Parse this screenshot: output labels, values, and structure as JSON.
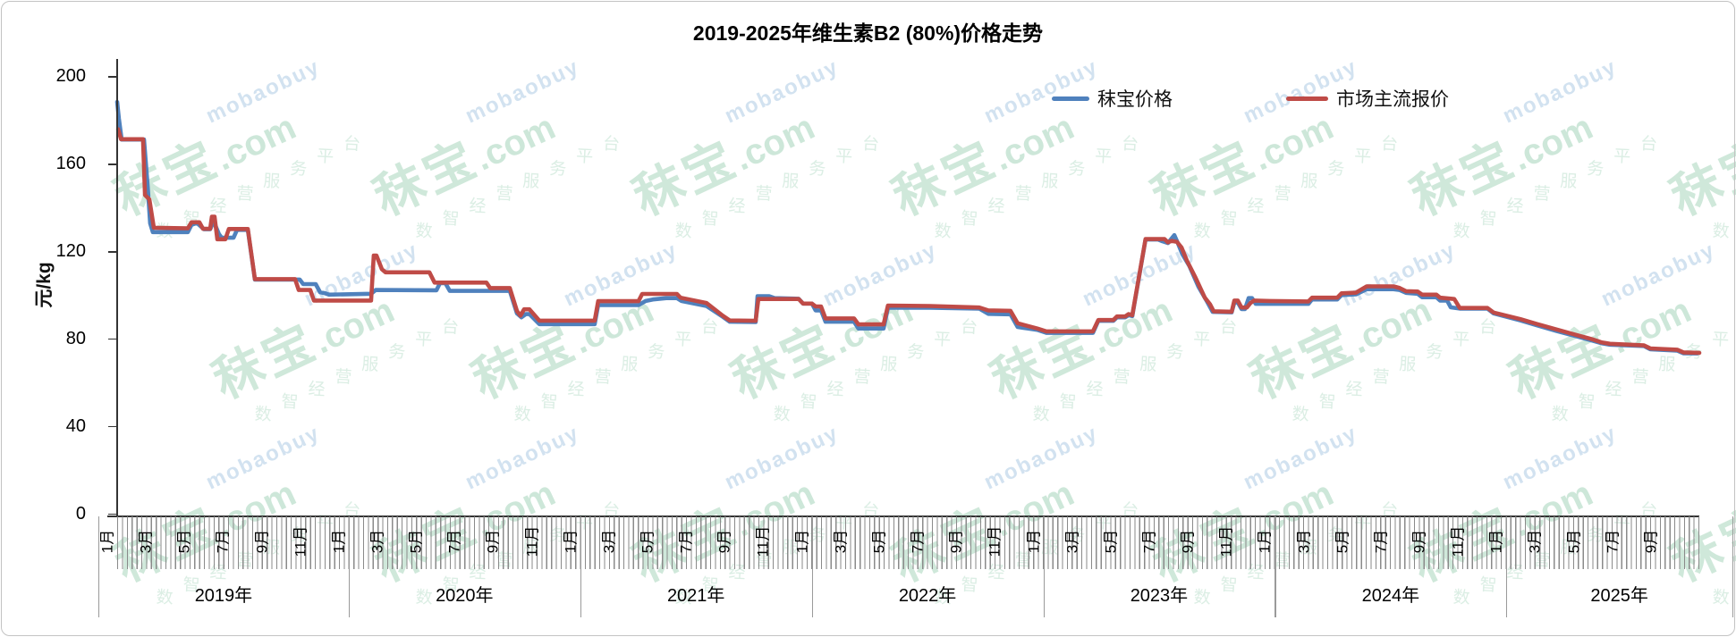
{
  "title": "2019-2025年维生素B2 (80%)价格走势",
  "y_axis": {
    "label": "元/kg",
    "ticks": [
      0,
      40,
      80,
      120,
      160,
      200
    ],
    "min": 0,
    "max": 200
  },
  "x_axis": {
    "month_labels": [
      "1月",
      "3月",
      "5月",
      "7月",
      "9月",
      "11月"
    ],
    "year_labels": [
      "2019年",
      "2020年",
      "2021年",
      "2022年",
      "2023年",
      "2024年",
      "2025年"
    ],
    "range_months": 82
  },
  "legend": [
    {
      "label": "秣宝价格",
      "color": "#4f81bd"
    },
    {
      "label": "市场主流报价",
      "color": "#bf4b47"
    }
  ],
  "watermark": {
    "brand_cn": "秣宝",
    "domain": ".com",
    "brand_en": "mobaobuy",
    "tagline": "数智经营服务平台"
  },
  "chart_data": {
    "type": "line",
    "title": "2019-2025年维生素B2 (80%)价格走势",
    "xlabel": "",
    "ylabel": "元/kg",
    "ylim": [
      0,
      200
    ],
    "x_unit": "months since 2019-01 (0 = Jan 2019, 82 = end Oct 2025)",
    "legend_position": "top",
    "grid": false,
    "series": [
      {
        "name": "秣宝价格",
        "color": "#4f81bd",
        "points": [
          [
            0,
            188.5
          ],
          [
            0.09,
            181
          ],
          [
            0.23,
            171.3
          ],
          [
            1.39,
            171.3
          ],
          [
            1.58,
            150
          ],
          [
            1.71,
            133
          ],
          [
            1.85,
            129
          ],
          [
            3.66,
            129
          ],
          [
            3.85,
            132.3
          ],
          [
            4.13,
            133.2
          ],
          [
            4.5,
            130.3
          ],
          [
            4.82,
            130.3
          ],
          [
            5.0,
            133.9
          ],
          [
            5.28,
            128
          ],
          [
            5.42,
            126.4
          ],
          [
            6.03,
            126.4
          ],
          [
            6.21,
            130
          ],
          [
            6.77,
            130
          ],
          [
            7.14,
            107.3
          ],
          [
            9.46,
            107.3
          ],
          [
            9.64,
            105.2
          ],
          [
            10.29,
            105.2
          ],
          [
            10.52,
            101.5
          ],
          [
            10.75,
            101.1
          ],
          [
            10.98,
            100.4
          ],
          [
            13.16,
            100.8
          ],
          [
            13.4,
            102.5
          ],
          [
            16.55,
            102.4
          ],
          [
            16.73,
            105.6
          ],
          [
            17.01,
            105.6
          ],
          [
            17.24,
            102.1
          ],
          [
            20.35,
            102.1
          ],
          [
            20.72,
            91.8
          ],
          [
            20.95,
            90
          ],
          [
            21.18,
            91.5
          ],
          [
            21.37,
            91.5
          ],
          [
            21.88,
            86.9
          ],
          [
            24.75,
            86.9
          ],
          [
            24.93,
            95.6
          ],
          [
            27.02,
            95.6
          ],
          [
            27.39,
            97.5
          ],
          [
            27.76,
            98.2
          ],
          [
            28.46,
            98.8
          ],
          [
            29.01,
            98.8
          ],
          [
            29.25,
            97.5
          ],
          [
            30.54,
            95.2
          ],
          [
            31.38,
            90.3
          ],
          [
            31.75,
            88
          ],
          [
            33.09,
            87.9
          ],
          [
            33.19,
            99.7
          ],
          [
            33.79,
            99.7
          ],
          [
            34.07,
            98.8
          ],
          [
            35.32,
            98.5
          ],
          [
            35.55,
            96.3
          ],
          [
            36.01,
            96.3
          ],
          [
            36.2,
            93.2
          ],
          [
            36.48,
            93.2
          ],
          [
            36.71,
            88
          ],
          [
            38.19,
            88
          ],
          [
            38.42,
            84.9
          ],
          [
            39.72,
            84.9
          ],
          [
            39.95,
            94.4
          ],
          [
            42.13,
            94.4
          ],
          [
            44.68,
            94
          ],
          [
            45.15,
            91.6
          ],
          [
            46.3,
            91.4
          ],
          [
            46.67,
            85.6
          ],
          [
            47.22,
            84.9
          ],
          [
            47.69,
            84.3
          ],
          [
            48.16,
            82.9
          ],
          [
            50.57,
            82.9
          ],
          [
            50.85,
            88.4
          ],
          [
            51.63,
            88.4
          ],
          [
            51.82,
            90
          ],
          [
            52.24,
            90
          ],
          [
            52.42,
            91
          ],
          [
            52.61,
            90.6
          ],
          [
            53.3,
            125.6
          ],
          [
            53.95,
            125.6
          ],
          [
            54.18,
            124.8
          ],
          [
            54.46,
            124
          ],
          [
            54.79,
            127.6
          ],
          [
            54.97,
            124
          ],
          [
            55.2,
            119
          ],
          [
            55.57,
            113.5
          ],
          [
            56.04,
            104
          ],
          [
            56.5,
            97
          ],
          [
            56.78,
            92.5
          ],
          [
            57.76,
            92.3
          ],
          [
            57.9,
            96.8
          ],
          [
            58.08,
            96.8
          ],
          [
            58.27,
            93.8
          ],
          [
            58.45,
            93.8
          ],
          [
            58.64,
            98.8
          ],
          [
            58.82,
            98.8
          ],
          [
            59.01,
            96.2
          ],
          [
            61.74,
            96.2
          ],
          [
            61.93,
            98.2
          ],
          [
            63.23,
            98.2
          ],
          [
            63.46,
            100.2
          ],
          [
            64.2,
            100.5
          ],
          [
            64.76,
            102.9
          ],
          [
            66.15,
            102.9
          ],
          [
            66.47,
            102.5
          ],
          [
            66.8,
            101.2
          ],
          [
            67.4,
            100.8
          ],
          [
            67.63,
            99.2
          ],
          [
            68.37,
            99.2
          ],
          [
            68.56,
            97.7
          ],
          [
            68.93,
            97.7
          ],
          [
            69.12,
            94.6
          ],
          [
            69.58,
            94
          ],
          [
            71.02,
            94
          ],
          [
            71.34,
            91.8
          ],
          [
            72.73,
            88.6
          ],
          [
            73.57,
            86.4
          ],
          [
            74.59,
            83.8
          ],
          [
            75.61,
            81.4
          ],
          [
            76.44,
            79.4
          ],
          [
            76.91,
            78.2
          ],
          [
            77.37,
            77.5
          ],
          [
            79.13,
            76.9
          ],
          [
            79.46,
            75.4
          ],
          [
            80.85,
            74.8
          ],
          [
            81.17,
            73.6
          ],
          [
            81.9,
            73.5
          ]
        ]
      },
      {
        "name": "市场主流报价",
        "color": "#bf4b47",
        "points": [
          [
            0.05,
            176
          ],
          [
            0.2,
            171.5
          ],
          [
            1.34,
            171.5
          ],
          [
            1.44,
            146
          ],
          [
            1.67,
            144
          ],
          [
            1.9,
            131
          ],
          [
            3.66,
            130.7
          ],
          [
            3.85,
            133.5
          ],
          [
            4.26,
            133.5
          ],
          [
            4.45,
            130.5
          ],
          [
            4.82,
            130.5
          ],
          [
            4.91,
            136
          ],
          [
            5.05,
            136
          ],
          [
            5.19,
            125.7
          ],
          [
            5.61,
            125.7
          ],
          [
            5.79,
            130.4
          ],
          [
            6.77,
            130.4
          ],
          [
            7.14,
            107.5
          ],
          [
            9.22,
            107.5
          ],
          [
            9.41,
            102.5
          ],
          [
            10.01,
            102.5
          ],
          [
            10.2,
            97.7
          ],
          [
            13.16,
            97.7
          ],
          [
            13.3,
            118.3
          ],
          [
            13.44,
            118.3
          ],
          [
            13.72,
            112
          ],
          [
            13.91,
            110.6
          ],
          [
            16.18,
            110.6
          ],
          [
            16.45,
            105.9
          ],
          [
            19.14,
            105.9
          ],
          [
            19.33,
            103.4
          ],
          [
            20.35,
            103.4
          ],
          [
            20.72,
            92.9
          ],
          [
            20.9,
            90.8
          ],
          [
            21.09,
            93.7
          ],
          [
            21.37,
            93.7
          ],
          [
            21.88,
            88.5
          ],
          [
            24.75,
            88.5
          ],
          [
            24.93,
            97.4
          ],
          [
            27.02,
            97.4
          ],
          [
            27.21,
            100.7
          ],
          [
            29.01,
            100.7
          ],
          [
            29.2,
            99
          ],
          [
            30.54,
            96.6
          ],
          [
            31.38,
            90.8
          ],
          [
            31.75,
            88.6
          ],
          [
            33.09,
            88.4
          ],
          [
            33.23,
            98.4
          ],
          [
            35.32,
            98.4
          ],
          [
            35.55,
            96.3
          ],
          [
            36.01,
            96.3
          ],
          [
            36.2,
            95
          ],
          [
            36.48,
            95
          ],
          [
            36.71,
            89.5
          ],
          [
            38.19,
            89.5
          ],
          [
            38.42,
            86.8
          ],
          [
            39.72,
            86.8
          ],
          [
            39.95,
            95.4
          ],
          [
            42.13,
            95.2
          ],
          [
            44.68,
            94.5
          ],
          [
            45.15,
            93.2
          ],
          [
            46.3,
            93
          ],
          [
            46.67,
            87.3
          ],
          [
            47.69,
            84.9
          ],
          [
            48.16,
            83.6
          ],
          [
            50.57,
            83.6
          ],
          [
            50.85,
            88.8
          ],
          [
            51.63,
            88.8
          ],
          [
            51.82,
            90.4
          ],
          [
            52.24,
            90.4
          ],
          [
            52.42,
            91.5
          ],
          [
            52.61,
            91
          ],
          [
            53.3,
            125.8
          ],
          [
            54.28,
            125.8
          ],
          [
            54.46,
            124.3
          ],
          [
            54.65,
            125
          ],
          [
            54.93,
            124.5
          ],
          [
            55.16,
            122
          ],
          [
            55.44,
            116
          ],
          [
            55.9,
            108
          ],
          [
            56.37,
            99
          ],
          [
            56.64,
            96
          ],
          [
            56.83,
            92.8
          ],
          [
            57.76,
            92.6
          ],
          [
            57.9,
            97.7
          ],
          [
            58.08,
            97.7
          ],
          [
            58.27,
            94.5
          ],
          [
            58.55,
            94.5
          ],
          [
            58.73,
            96.5
          ],
          [
            58.92,
            97.7
          ],
          [
            59.75,
            97.5
          ],
          [
            61.74,
            97.3
          ],
          [
            61.93,
            99
          ],
          [
            63.23,
            99
          ],
          [
            63.46,
            101
          ],
          [
            64.2,
            101.3
          ],
          [
            64.76,
            104.2
          ],
          [
            66.15,
            104.2
          ],
          [
            66.47,
            103.4
          ],
          [
            66.8,
            102
          ],
          [
            67.4,
            101.8
          ],
          [
            67.63,
            100.4
          ],
          [
            68.37,
            100.4
          ],
          [
            68.56,
            99
          ],
          [
            69.3,
            98.4
          ],
          [
            69.58,
            94.3
          ],
          [
            71.02,
            94.3
          ],
          [
            71.34,
            92.2
          ],
          [
            72.73,
            89.2
          ],
          [
            73.57,
            87
          ],
          [
            74.59,
            84.5
          ],
          [
            75.61,
            82
          ],
          [
            76.44,
            80
          ],
          [
            76.91,
            78.6
          ],
          [
            77.37,
            77.9
          ],
          [
            79.13,
            77.2
          ],
          [
            79.46,
            75.8
          ],
          [
            80.85,
            75.2
          ],
          [
            81.17,
            74
          ],
          [
            82,
            73.8
          ]
        ]
      }
    ]
  }
}
